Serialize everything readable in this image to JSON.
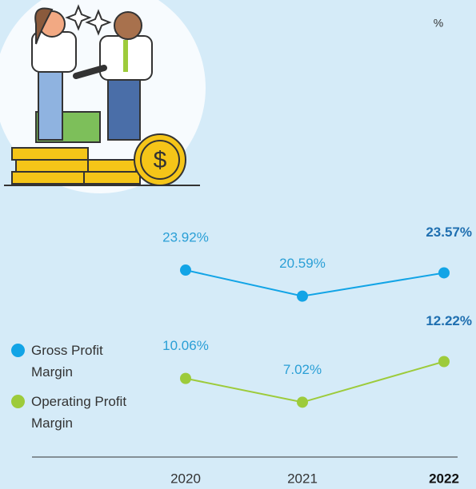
{
  "chart_data": {
    "type": "line",
    "unit": "%",
    "categories": [
      "2020",
      "2021",
      "2022"
    ],
    "series": [
      {
        "name": "Gross Profit Margin",
        "color": "#12a4e6",
        "values": [
          23.92,
          20.59,
          23.57
        ],
        "value_labels": [
          "23.92%",
          "20.59%",
          "23.57%"
        ]
      },
      {
        "name": "Operating Profit Margin",
        "color": "#9dcb3b",
        "values": [
          10.06,
          7.02,
          12.22
        ],
        "value_labels": [
          "10.06%",
          "7.02%",
          "12.22%"
        ]
      }
    ]
  }
}
